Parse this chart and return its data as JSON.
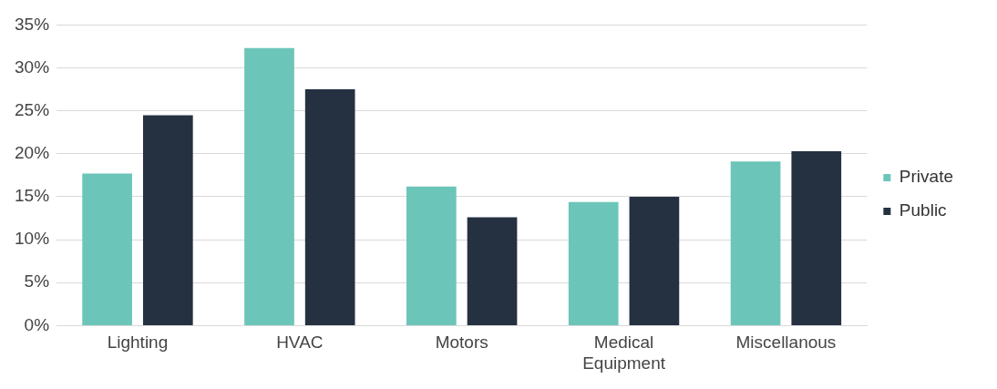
{
  "chart_data": {
    "type": "bar",
    "categories": [
      "Lighting",
      "HVAC",
      "Motors",
      "Medical Equipment",
      "Miscellanous"
    ],
    "series": [
      {
        "name": "Private",
        "color": "#6cc5b9",
        "values": [
          17.7,
          32.3,
          16.2,
          14.4,
          19.1
        ]
      },
      {
        "name": "Public",
        "color": "#253041",
        "values": [
          24.5,
          27.5,
          12.6,
          15.0,
          20.3
        ]
      }
    ],
    "ylim": [
      0,
      35
    ],
    "yticks": [
      {
        "value": 0,
        "label": "0%"
      },
      {
        "value": 5,
        "label": "5%"
      },
      {
        "value": 10,
        "label": "10%"
      },
      {
        "value": 15,
        "label": "15%"
      },
      {
        "value": 20,
        "label": "20%"
      },
      {
        "value": 25,
        "label": "25%"
      },
      {
        "value": 30,
        "label": "30%"
      },
      {
        "value": 35,
        "label": "35%"
      }
    ],
    "grid": "y",
    "legend": "right"
  }
}
